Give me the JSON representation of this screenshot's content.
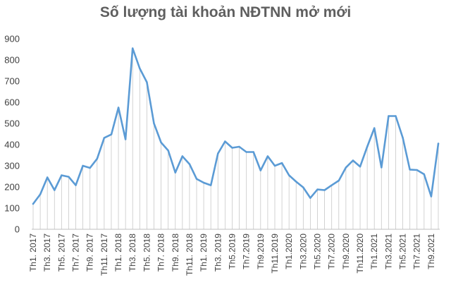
{
  "chart_data": {
    "type": "line",
    "title": "Số lượng tài khoản NĐTNN mở mới",
    "xlabel": "",
    "ylabel": "",
    "ylim": [
      0,
      900
    ],
    "yticks": [
      0,
      100,
      200,
      300,
      400,
      500,
      600,
      700,
      800,
      900
    ],
    "grid": false,
    "drop_lines": true,
    "legend": "none",
    "categories": [
      "Th1. 2017",
      "Th2. 2017",
      "Th3. 2017",
      "Th4. 2017",
      "Th5. 2017",
      "Th6. 2017",
      "Th7. 2017",
      "Th8. 2017",
      "Th9. 2017",
      "Th10. 2017",
      "Th11. 2017",
      "Th12. 2017",
      "Th1. 2018",
      "Th2. 2018",
      "Th3. 2018",
      "Th4. 2018",
      "Th5. 2018",
      "Th6. 2018",
      "Th7. 2018",
      "Th8. 2018",
      "Th9. 2018",
      "Th10. 2018",
      "Th11. 2018",
      "Th12. 2018",
      "Th1. 2019",
      "Th2. 2019",
      "Th3. 2019",
      "Th4. 2019",
      "Th5.2019",
      "Th6.2019",
      "Th7.2019",
      "Th8.2019",
      "Th9.2019",
      "Th10.2019",
      "Th11.2019",
      "Th12.2019",
      "Th1.2020",
      "Th2.2020",
      "Th3.2020",
      "Th4.2020",
      "Th5.2020",
      "Th6.2020",
      "Th7.2020",
      "Th8.2020",
      "Th9.2020",
      "Th10.2020",
      "Th11.2020",
      "Th12.2020",
      "Th1.2021",
      "Th2.2021",
      "Th3.2021",
      "Th4.2021",
      "Th5.2021",
      "Th6.2021",
      "Th7.2021",
      "Th8.2021",
      "Th9.2021",
      "Th10.2021"
    ],
    "visible_tick_labels": [
      "Th1. 2017",
      "Th3. 2017",
      "Th5. 2017",
      "Th7. 2017",
      "Th9. 2017",
      "Th11. 2017",
      "Th1. 2018",
      "Th3. 2018",
      "Th5. 2018",
      "Th7. 2018",
      "Th9. 2018",
      "Th11. 2018",
      "Th1. 2019",
      "Th3. 2019",
      "Th5.2019",
      "Th7.2019",
      "Th9.2019",
      "Th11.2019",
      "Th1.2020",
      "Th3.2020",
      "Th5.2020",
      "Th7.2020",
      "Th9.2020",
      "Th11.2020",
      "Th1.2021",
      "Th3.2021",
      "Th5.2021",
      "Th7.2021",
      "Th9.2021"
    ],
    "series": [
      {
        "color": "#5b9bd5",
        "values": [
          120,
          165,
          245,
          185,
          255,
          248,
          208,
          300,
          290,
          333,
          432,
          448,
          575,
          425,
          855,
          760,
          695,
          500,
          410,
          372,
          268,
          345,
          308,
          238,
          220,
          208,
          358,
          415,
          385,
          390,
          365,
          365,
          278,
          345,
          300,
          313,
          255,
          225,
          198,
          148,
          188,
          185,
          208,
          230,
          292,
          325,
          296,
          390,
          478,
          292,
          535,
          535,
          432,
          282,
          280,
          260,
          155,
          405
        ]
      }
    ]
  }
}
